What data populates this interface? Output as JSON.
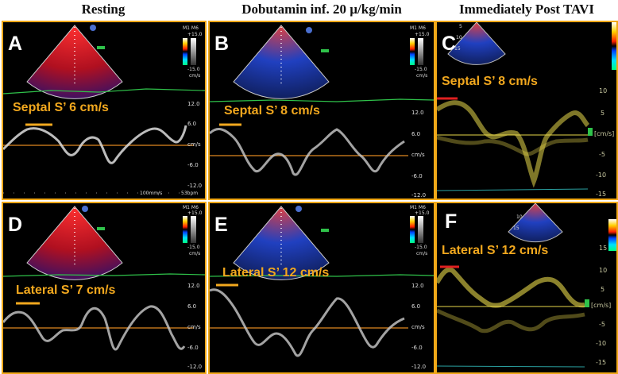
{
  "headers": [
    "Resting",
    "Dobutamin inf. 20 µ/kg/min",
    "Immediately Post TAVI"
  ],
  "panels": [
    {
      "id": "A",
      "label": "A",
      "measurement": "Septal S’ 6 cm/s",
      "scale_top": "+15.0",
      "scale_bottom": "-15.0",
      "scale_unit": "cm/s",
      "mode_label": "M1 M6",
      "ticks": [
        "12.0",
        "6.0",
        "cm/s",
        "-6.0",
        "-12.0"
      ],
      "speed": "100mm/s",
      "bpm": "53bpm"
    },
    {
      "id": "B",
      "label": "B",
      "measurement": "Septal S’ 8 cm/s",
      "scale_top": "+15.0",
      "scale_bottom": "-15.0",
      "scale_unit": "cm/s",
      "mode_label": "M1 M6",
      "ticks": [
        "12.0",
        "6.0",
        "cm/s",
        "-6.0",
        "-12.0"
      ]
    },
    {
      "id": "C",
      "label": "C",
      "measurement": "Septal S’ 8 cm/s",
      "ticks": [
        "10",
        "5",
        "[cm/s]",
        "-5",
        "-10",
        "-15"
      ],
      "depth": [
        "5",
        "10",
        "15"
      ]
    },
    {
      "id": "D",
      "label": "D",
      "measurement": "Lateral S’ 7 cm/s",
      "scale_top": "+15.0",
      "scale_bottom": "-15.0",
      "scale_unit": "cm/s",
      "mode_label": "M1 M6",
      "ticks": [
        "12.0",
        "6.0",
        "cm/s",
        "-6.0",
        "-12.0"
      ]
    },
    {
      "id": "E",
      "label": "E",
      "measurement": "Lateral S’ 12 cm/s",
      "scale_top": "+15.0",
      "scale_bottom": "-15.0",
      "scale_unit": "cm/s",
      "mode_label": "M1 M6",
      "ticks": [
        "12.0",
        "6.0",
        "cm/s",
        "-6.0",
        "-12.0"
      ]
    },
    {
      "id": "F",
      "label": "F",
      "measurement": "Lateral S’ 12 cm/s",
      "ticks": [
        "15",
        "10",
        "5",
        "[cm/s]",
        "-5",
        "-10",
        "-15"
      ],
      "depth": [
        "10",
        "15"
      ]
    }
  ],
  "colors": {
    "border": "#f0a818",
    "measure": "#f2a81e",
    "baseline": "#e08820",
    "ecg": "#2fc24a",
    "tdi": "#e8d84a",
    "mark": "#e02020"
  }
}
